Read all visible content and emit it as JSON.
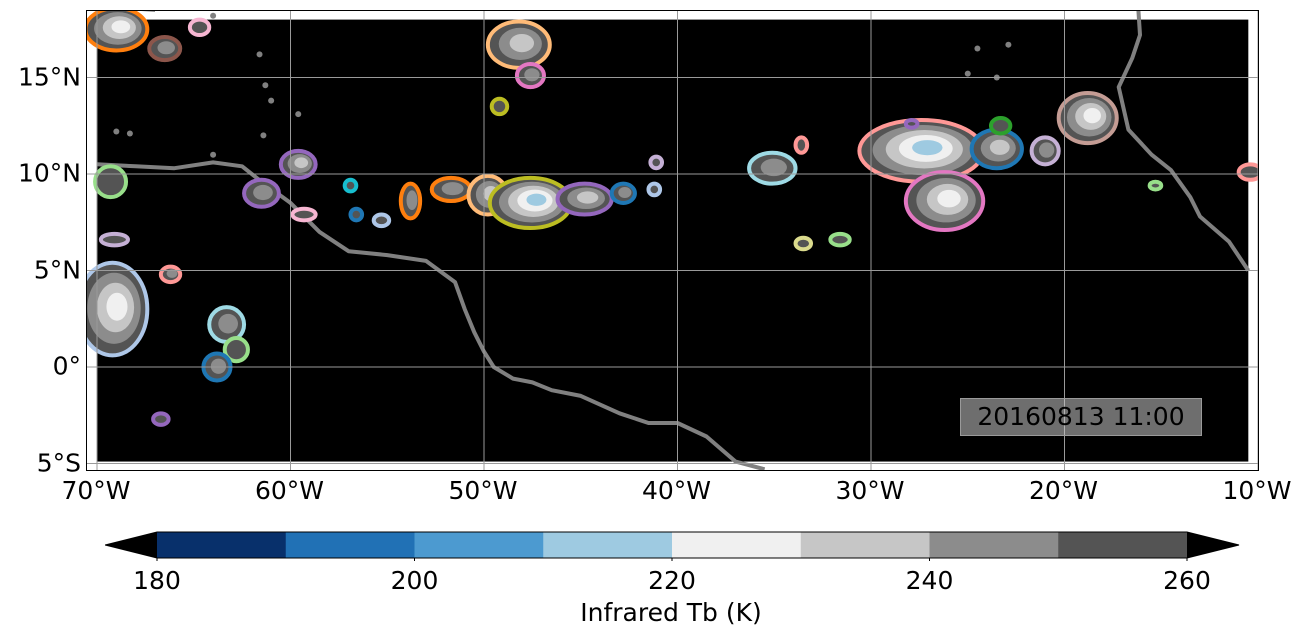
{
  "map": {
    "background_color": "#000000",
    "coastline_color": "#808080",
    "grid_color": "#9a9a9a",
    "lon_range": [
      -70,
      -10
    ],
    "lat_range": [
      -5.5,
      18.5
    ],
    "x_ticks": [
      {
        "value": -70,
        "label": "70°W"
      },
      {
        "value": -60,
        "label": "60°W"
      },
      {
        "value": -50,
        "label": "50°W"
      },
      {
        "value": -40,
        "label": "40°W"
      },
      {
        "value": -30,
        "label": "30°W"
      },
      {
        "value": -20,
        "label": "20°W"
      },
      {
        "value": -10,
        "label": "10°W"
      }
    ],
    "y_ticks": [
      {
        "value": 15,
        "label": "15°N"
      },
      {
        "value": 10,
        "label": "10°N"
      },
      {
        "value": 5,
        "label": "5°N"
      },
      {
        "value": 0,
        "label": "0°"
      },
      {
        "value": -5,
        "label": "5°S"
      }
    ],
    "timestamp": "20160813 11:00"
  },
  "colorbar": {
    "title": "Infrared Tb (K)",
    "levels": [
      180,
      190,
      200,
      210,
      220,
      230,
      240,
      250,
      260
    ],
    "colors": [
      "#08306b",
      "#2171b5",
      "#4c9ad0",
      "#9ecae1",
      "#f0f0f0",
      "#c6c6c6",
      "#8c8c8c",
      "#545454"
    ],
    "extend_min_color": "#000000",
    "extend_max_color": "#000000",
    "tick_labels": [
      {
        "value": 180,
        "label": "180"
      },
      {
        "value": 200,
        "label": "200"
      },
      {
        "value": 220,
        "label": "220"
      },
      {
        "value": 240,
        "label": "240"
      },
      {
        "value": 260,
        "label": "260"
      }
    ]
  },
  "systems": [
    {
      "lon": -69.0,
      "lat": 17.5,
      "rx": 1.6,
      "ry": 1.1,
      "outline": "#ff7f0e",
      "inner": 4
    },
    {
      "lon": -66.5,
      "lat": 16.5,
      "rx": 0.8,
      "ry": 0.6,
      "outline": "#8c564b",
      "inner": 2
    },
    {
      "lon": -64.7,
      "lat": 17.6,
      "rx": 0.5,
      "ry": 0.4,
      "outline": "#f7b6d2",
      "inner": 1
    },
    {
      "lon": -48.2,
      "lat": 16.7,
      "rx": 1.6,
      "ry": 1.2,
      "outline": "#ffbb78",
      "inner": 3
    },
    {
      "lon": -47.6,
      "lat": 15.1,
      "rx": 0.7,
      "ry": 0.6,
      "outline": "#e377c2",
      "inner": 2
    },
    {
      "lon": -49.2,
      "lat": 13.5,
      "rx": 0.4,
      "ry": 0.4,
      "outline": "#bcbd22",
      "inner": 1
    },
    {
      "lon": -69.3,
      "lat": 9.6,
      "rx": 0.8,
      "ry": 0.8,
      "outline": "#98df8a",
      "inner": 1
    },
    {
      "lon": -69.1,
      "lat": 6.6,
      "rx": 0.7,
      "ry": 0.3,
      "outline": "#c5b0d5",
      "inner": 1
    },
    {
      "lon": -69.2,
      "lat": 3.0,
      "rx": 1.8,
      "ry": 2.4,
      "outline": "#aec7e8",
      "inner": 4
    },
    {
      "lon": -66.2,
      "lat": 4.8,
      "rx": 0.5,
      "ry": 0.4,
      "outline": "#ff9896",
      "inner": 2
    },
    {
      "lon": -61.5,
      "lat": 9.0,
      "rx": 0.9,
      "ry": 0.7,
      "outline": "#9467bd",
      "inner": 2
    },
    {
      "lon": -59.6,
      "lat": 10.5,
      "rx": 0.9,
      "ry": 0.7,
      "outline": "#9467bd",
      "inner": 3
    },
    {
      "lon": -59.3,
      "lat": 7.9,
      "rx": 0.6,
      "ry": 0.3,
      "outline": "#f7b6d2",
      "inner": 1
    },
    {
      "lon": -56.9,
      "lat": 9.4,
      "rx": 0.3,
      "ry": 0.3,
      "outline": "#17becf",
      "inner": 1
    },
    {
      "lon": -56.6,
      "lat": 7.9,
      "rx": 0.3,
      "ry": 0.3,
      "outline": "#1f77b4",
      "inner": 1
    },
    {
      "lon": -55.3,
      "lat": 7.6,
      "rx": 0.4,
      "ry": 0.3,
      "outline": "#aec7e8",
      "inner": 1
    },
    {
      "lon": -53.8,
      "lat": 8.6,
      "rx": 0.5,
      "ry": 0.9,
      "outline": "#ff7f0e",
      "inner": 2
    },
    {
      "lon": -51.7,
      "lat": 9.2,
      "rx": 1.0,
      "ry": 0.6,
      "outline": "#ff7f0e",
      "inner": 2
    },
    {
      "lon": -49.8,
      "lat": 8.9,
      "rx": 1.0,
      "ry": 1.0,
      "outline": "#ffbb78",
      "inner": 3
    },
    {
      "lon": -47.6,
      "lat": 8.5,
      "rx": 2.1,
      "ry": 1.3,
      "outline": "#bcbd22",
      "inner": 5
    },
    {
      "lon": -44.8,
      "lat": 8.7,
      "rx": 1.4,
      "ry": 0.8,
      "outline": "#9467bd",
      "inner": 3
    },
    {
      "lon": -42.8,
      "lat": 9.0,
      "rx": 0.6,
      "ry": 0.5,
      "outline": "#1f77b4",
      "inner": 2
    },
    {
      "lon": -41.2,
      "lat": 9.2,
      "rx": 0.3,
      "ry": 0.3,
      "outline": "#aec7e8",
      "inner": 1
    },
    {
      "lon": -41.1,
      "lat": 10.6,
      "rx": 0.3,
      "ry": 0.3,
      "outline": "#c5b0d5",
      "inner": 1
    },
    {
      "lon": -63.3,
      "lat": 2.2,
      "rx": 0.9,
      "ry": 0.9,
      "outline": "#9edae5",
      "inner": 2
    },
    {
      "lon": -62.8,
      "lat": 0.9,
      "rx": 0.6,
      "ry": 0.6,
      "outline": "#98df8a",
      "inner": 1
    },
    {
      "lon": -63.8,
      "lat": 0.0,
      "rx": 0.7,
      "ry": 0.7,
      "outline": "#1f77b4",
      "inner": 2
    },
    {
      "lon": -66.7,
      "lat": -2.7,
      "rx": 0.4,
      "ry": 0.3,
      "outline": "#9467bd",
      "inner": 1
    },
    {
      "lon": -35.1,
      "lat": 10.3,
      "rx": 1.2,
      "ry": 0.8,
      "outline": "#9edae5",
      "inner": 2
    },
    {
      "lon": -33.6,
      "lat": 11.5,
      "rx": 0.3,
      "ry": 0.4,
      "outline": "#ff9896",
      "inner": 1
    },
    {
      "lon": -33.5,
      "lat": 6.4,
      "rx": 0.4,
      "ry": 0.3,
      "outline": "#dbdb8d",
      "inner": 1
    },
    {
      "lon": -31.6,
      "lat": 6.6,
      "rx": 0.5,
      "ry": 0.3,
      "outline": "#98df8a",
      "inner": 1
    },
    {
      "lon": -27.4,
      "lat": 11.2,
      "rx": 3.2,
      "ry": 1.6,
      "outline": "#ff9896",
      "inner": 5
    },
    {
      "lon": -26.2,
      "lat": 8.6,
      "rx": 2.0,
      "ry": 1.5,
      "outline": "#e377c2",
      "inner": 4
    },
    {
      "lon": -23.5,
      "lat": 11.3,
      "rx": 1.3,
      "ry": 1.0,
      "outline": "#1f77b4",
      "inner": 3
    },
    {
      "lon": -23.3,
      "lat": 12.5,
      "rx": 0.5,
      "ry": 0.4,
      "outline": "#2ca02c",
      "inner": 1
    },
    {
      "lon": -21.0,
      "lat": 11.2,
      "rx": 0.7,
      "ry": 0.7,
      "outline": "#c5b0d5",
      "inner": 2
    },
    {
      "lon": -27.9,
      "lat": 12.6,
      "rx": 0.3,
      "ry": 0.2,
      "outline": "#9467bd",
      "inner": 1
    },
    {
      "lon": -18.8,
      "lat": 12.9,
      "rx": 1.5,
      "ry": 1.3,
      "outline": "#c49c94",
      "inner": 4
    },
    {
      "lon": -15.3,
      "lat": 9.4,
      "rx": 0.3,
      "ry": 0.2,
      "outline": "#98df8a",
      "inner": 1
    },
    {
      "lon": -10.4,
      "lat": 10.1,
      "rx": 0.6,
      "ry": 0.4,
      "outline": "#ff9896",
      "inner": 1
    }
  ]
}
